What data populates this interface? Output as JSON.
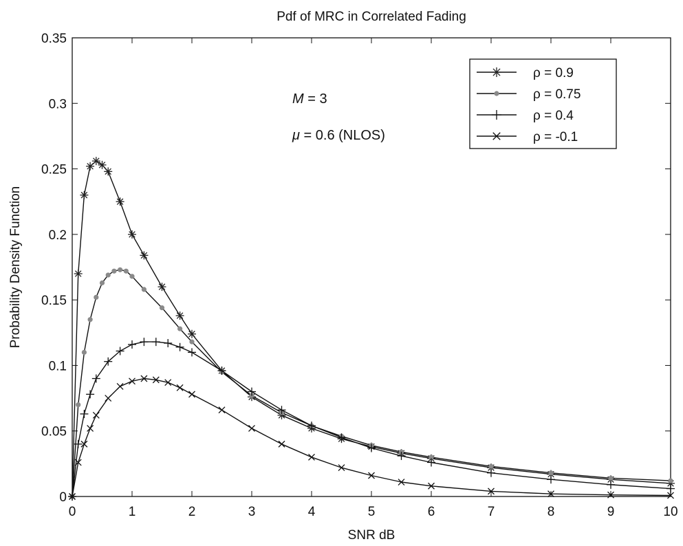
{
  "chart_data": {
    "type": "line",
    "title": "Pdf of MRC in Correlated Fading",
    "xlabel": "SNR dB",
    "ylabel": "Probability Density Function",
    "xlim": [
      0,
      10
    ],
    "ylim": [
      0,
      0.35
    ],
    "x_ticks": [
      0,
      1,
      2,
      3,
      4,
      5,
      6,
      7,
      8,
      9,
      10
    ],
    "x_tick_labels": [
      "0",
      "1",
      "2",
      "3",
      "4",
      "5",
      "6",
      "7",
      "8",
      "9",
      "10"
    ],
    "y_ticks": [
      0,
      0.05,
      0.1,
      0.15,
      0.2,
      0.25,
      0.3,
      0.35
    ],
    "y_tick_labels": [
      "0",
      "0.05",
      "0.1",
      "0.15",
      "0.2",
      "0.25",
      "0.3",
      "0.35"
    ],
    "grid": false,
    "legend_position": "top-right",
    "annotations": [
      {
        "italic": "M",
        "text": " = 3"
      },
      {
        "italic": "μ",
        "text": " = 0.6 (NLOS)"
      }
    ],
    "series": [
      {
        "name": "ρ  = 0.9",
        "marker": "star",
        "color": "#111111",
        "marker_color": "#222222",
        "x": [
          0,
          0.1,
          0.2,
          0.3,
          0.4,
          0.5,
          0.6,
          0.8,
          1.0,
          1.2,
          1.5,
          1.8,
          2.0,
          2.5,
          3.0,
          3.5,
          4.0,
          4.5,
          5.0,
          5.5,
          6.0,
          7.0,
          8.0,
          9.0,
          10.0
        ],
        "values": [
          0,
          0.17,
          0.23,
          0.252,
          0.256,
          0.253,
          0.248,
          0.225,
          0.2,
          0.184,
          0.16,
          0.138,
          0.124,
          0.096,
          0.076,
          0.062,
          0.052,
          0.044,
          0.038,
          0.033,
          0.029,
          0.022,
          0.017,
          0.013,
          0.01
        ]
      },
      {
        "name": "ρ  = 0.75",
        "marker": "dot",
        "color": "#111111",
        "marker_color": "#8a8a8a",
        "x": [
          0,
          0.1,
          0.2,
          0.3,
          0.4,
          0.5,
          0.6,
          0.7,
          0.8,
          0.9,
          1.0,
          1.2,
          1.5,
          1.8,
          2.0,
          2.5,
          3.0,
          3.5,
          4.0,
          4.5,
          5.0,
          5.5,
          6.0,
          7.0,
          8.0,
          9.0,
          10.0
        ],
        "values": [
          0,
          0.07,
          0.11,
          0.135,
          0.152,
          0.163,
          0.169,
          0.172,
          0.173,
          0.172,
          0.168,
          0.158,
          0.144,
          0.128,
          0.118,
          0.095,
          0.077,
          0.064,
          0.054,
          0.046,
          0.039,
          0.034,
          0.03,
          0.023,
          0.018,
          0.014,
          0.012
        ]
      },
      {
        "name": "ρ  = 0.4",
        "marker": "plus",
        "color": "#111111",
        "marker_color": "#111111",
        "x": [
          0,
          0.1,
          0.2,
          0.3,
          0.4,
          0.6,
          0.8,
          1.0,
          1.2,
          1.4,
          1.6,
          1.8,
          2.0,
          2.5,
          3.0,
          3.5,
          4.0,
          4.5,
          5.0,
          5.5,
          6.0,
          7.0,
          8.0,
          9.0,
          10.0
        ],
        "values": [
          0,
          0.04,
          0.063,
          0.078,
          0.09,
          0.103,
          0.111,
          0.116,
          0.118,
          0.118,
          0.117,
          0.114,
          0.11,
          0.096,
          0.08,
          0.066,
          0.054,
          0.045,
          0.037,
          0.031,
          0.026,
          0.018,
          0.013,
          0.009,
          0.006
        ]
      },
      {
        "name": "ρ  = -0.1",
        "marker": "x",
        "color": "#111111",
        "marker_color": "#111111",
        "x": [
          0,
          0.1,
          0.2,
          0.3,
          0.4,
          0.6,
          0.8,
          1.0,
          1.2,
          1.4,
          1.6,
          1.8,
          2.0,
          2.5,
          3.0,
          3.5,
          4.0,
          4.5,
          5.0,
          5.5,
          6.0,
          7.0,
          8.0,
          9.0,
          10.0
        ],
        "values": [
          0,
          0.026,
          0.04,
          0.052,
          0.062,
          0.075,
          0.084,
          0.088,
          0.09,
          0.089,
          0.087,
          0.083,
          0.078,
          0.066,
          0.052,
          0.04,
          0.03,
          0.022,
          0.016,
          0.011,
          0.008,
          0.004,
          0.002,
          0.0012,
          0.0008
        ]
      }
    ]
  }
}
